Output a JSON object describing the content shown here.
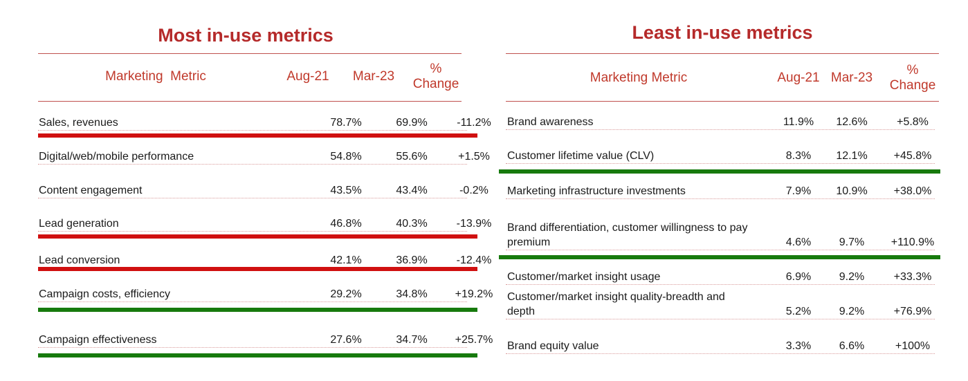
{
  "colors": {
    "title": "#b52a2a",
    "header": "#c0392b",
    "red_bar": "#d01010",
    "green_bar": "#177a0d"
  },
  "left": {
    "title": "Most in-use metrics",
    "headers": {
      "metric": "Marketing  Metric",
      "aug": "Aug-21",
      "mar": "Mar-23",
      "pct_line1": "%",
      "pct_line2": "Change"
    },
    "rows": [
      {
        "metric": "Sales, revenues",
        "aug": "78.7%",
        "mar": "69.9%",
        "change": "-11.2%",
        "bar": "red"
      },
      {
        "metric": "Digital/web/mobile performance",
        "aug": "54.8%",
        "mar": "55.6%",
        "change": "+1.5%",
        "bar": ""
      },
      {
        "metric": "Content engagement",
        "aug": "43.5%",
        "mar": "43.4%",
        "change": "-0.2%",
        "bar": ""
      },
      {
        "metric": "Lead generation",
        "aug": "46.8%",
        "mar": "40.3%",
        "change": "-13.9%",
        "bar": "red"
      },
      {
        "metric": "Lead conversion",
        "aug": "42.1%",
        "mar": "36.9%",
        "change": "-12.4%",
        "bar": "red"
      },
      {
        "metric": "Campaign costs, efficiency",
        "aug": "29.2%",
        "mar": "34.8%",
        "change": "+19.2%",
        "bar": "green"
      },
      {
        "metric": "Campaign effectiveness",
        "aug": "27.6%",
        "mar": "34.7%",
        "change": "+25.7%",
        "bar": "green"
      }
    ]
  },
  "right": {
    "title": "Least in-use metrics",
    "headers": {
      "metric": "Marketing Metric",
      "aug": "Aug-21",
      "mar": "Mar-23",
      "pct_line1": "%",
      "pct_line2": "Change"
    },
    "rows": [
      {
        "metric": "Brand awareness",
        "metric2": "",
        "aug": "11.9%",
        "mar": "12.6%",
        "change": "+5.8%",
        "bar": ""
      },
      {
        "metric": "Customer lifetime value (CLV)",
        "metric2": "",
        "aug": "8.3%",
        "mar": "12.1%",
        "change": "+45.8%",
        "bar": "green"
      },
      {
        "metric": "Marketing infrastructure investments",
        "metric2": "",
        "aug": "7.9%",
        "mar": "10.9%",
        "change": "+38.0%",
        "bar": ""
      },
      {
        "metric": "Brand differentiation, customer willingness to pay",
        "metric2": "premium",
        "aug": "4.6%",
        "mar": "9.7%",
        "change": "+110.9%",
        "bar": "green"
      },
      {
        "metric": "Customer/market insight usage",
        "metric2": "",
        "aug": "6.9%",
        "mar": "9.2%",
        "change": "+33.3%",
        "bar": ""
      },
      {
        "metric": "Customer/market insight quality-breadth and",
        "metric2": "depth",
        "aug": "5.2%",
        "mar": "9.2%",
        "change": "+76.9%",
        "bar": ""
      },
      {
        "metric": "Brand equity value",
        "metric2": "",
        "aug": "3.3%",
        "mar": "6.6%",
        "change": "+100%",
        "bar": ""
      }
    ]
  }
}
